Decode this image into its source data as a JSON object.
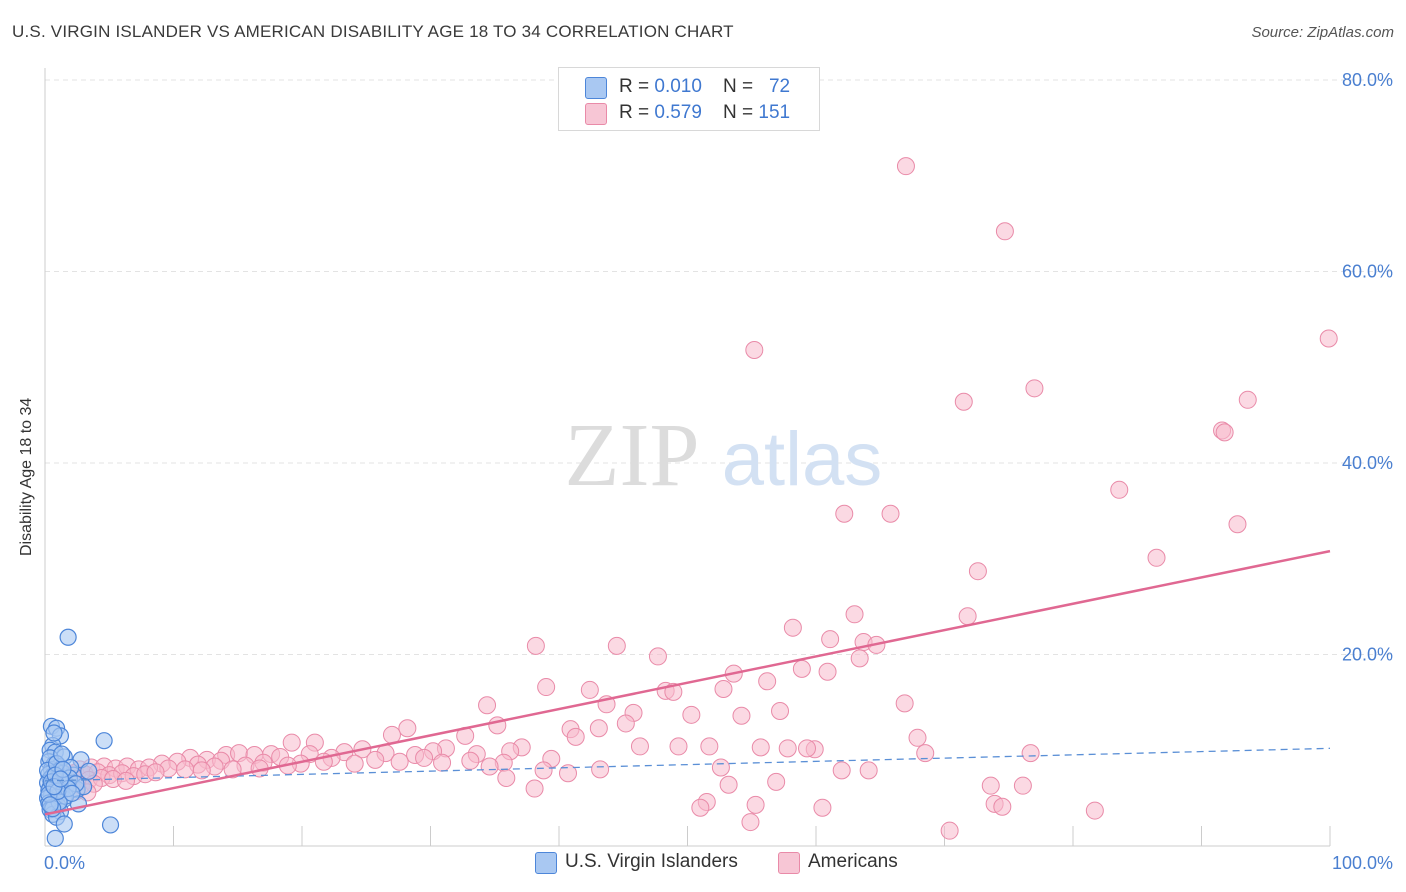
{
  "title": "U.S. VIRGIN ISLANDER VS AMERICAN DISABILITY AGE 18 TO 34 CORRELATION CHART",
  "source": "Source: ZipAtlas.com",
  "watermark": {
    "zip": "ZIP",
    "atlas": "atlas"
  },
  "legend": {
    "rows": [
      {
        "r_label": "R = ",
        "r_value": "0.010",
        "n_label": "N = ",
        "n_value": "72"
      },
      {
        "r_label": "R = ",
        "r_value": "0.579",
        "n_label": "N = ",
        "n_value": "151"
      }
    ]
  },
  "bottom_legend": [
    {
      "label": "U.S. Virgin Islanders"
    },
    {
      "label": "Americans"
    }
  ],
  "colors": {
    "blue_fill": "#a9c8f2",
    "blue_stroke": "#4d86d9",
    "blue_line": "#5a8fd6",
    "pink_fill": "#f7b9cc",
    "pink_stroke": "#e98aa8",
    "pink_line": "#e06892",
    "grid": "#e3e3e3",
    "axis": "#cccccc",
    "tick_text": "#4a7fd0"
  },
  "chart_data": {
    "type": "scatter",
    "title": "U.S. VIRGIN ISLANDER VS AMERICAN DISABILITY AGE 18 TO 34 CORRELATION CHART",
    "xlabel": "",
    "ylabel": "Disability Age 18 to 34",
    "xlim": [
      0,
      100
    ],
    "ylim": [
      0,
      80
    ],
    "x_tick_labels": [
      {
        "value": 0,
        "label": "0.0%"
      },
      {
        "value": 100,
        "label": "100.0%"
      }
    ],
    "y_tick_labels": [
      {
        "value": 20,
        "label": "20.0%"
      },
      {
        "value": 40,
        "label": "40.0%"
      },
      {
        "value": 60,
        "label": "60.0%"
      },
      {
        "value": 80,
        "label": "80.0%"
      }
    ],
    "series": [
      {
        "name": "U.S. Virgin Islanders",
        "R": 0.01,
        "N": 72,
        "trend": {
          "x": [
            0,
            100
          ],
          "y": [
            6.8,
            10.2
          ]
        },
        "points": [
          [
            1.8,
            21.8
          ],
          [
            0.5,
            12.5
          ],
          [
            0.9,
            12.3
          ],
          [
            1.2,
            11.5
          ],
          [
            0.6,
            10.5
          ],
          [
            4.6,
            11.0
          ],
          [
            0.4,
            10.0
          ],
          [
            0.8,
            9.8
          ],
          [
            1.5,
            9.3
          ],
          [
            2.8,
            9.0
          ],
          [
            0.3,
            8.8
          ],
          [
            0.7,
            8.5
          ],
          [
            1.1,
            8.3
          ],
          [
            0.5,
            8.0
          ],
          [
            0.9,
            7.8
          ],
          [
            1.4,
            7.6
          ],
          [
            0.3,
            7.5
          ],
          [
            0.6,
            7.3
          ],
          [
            2.2,
            7.4
          ],
          [
            1.0,
            7.2
          ],
          [
            0.4,
            7.0
          ],
          [
            0.8,
            6.9
          ],
          [
            1.3,
            6.8
          ],
          [
            0.2,
            6.6
          ],
          [
            0.6,
            6.5
          ],
          [
            1.7,
            6.4
          ],
          [
            1.0,
            6.3
          ],
          [
            0.4,
            6.1
          ],
          [
            0.8,
            6.0
          ],
          [
            2.5,
            5.9
          ],
          [
            0.3,
            5.8
          ],
          [
            0.6,
            5.6
          ],
          [
            1.2,
            5.5
          ],
          [
            0.5,
            5.3
          ],
          [
            0.9,
            5.1
          ],
          [
            0.2,
            5.0
          ],
          [
            1.5,
            4.9
          ],
          [
            0.7,
            4.7
          ],
          [
            0.3,
            4.5
          ],
          [
            2.6,
            4.4
          ],
          [
            1.0,
            4.2
          ],
          [
            0.5,
            4.0
          ],
          [
            0.4,
            3.8
          ],
          [
            1.2,
            3.6
          ],
          [
            0.6,
            3.3
          ],
          [
            0.9,
            3.0
          ],
          [
            1.5,
            2.3
          ],
          [
            5.1,
            2.2
          ],
          [
            0.8,
            0.8
          ],
          [
            3.4,
            7.8
          ],
          [
            3.0,
            6.2
          ],
          [
            2.0,
            8.2
          ],
          [
            1.6,
            5.2
          ],
          [
            0.4,
            9.2
          ],
          [
            0.7,
            11.8
          ],
          [
            1.9,
            7.1
          ],
          [
            0.2,
            7.9
          ],
          [
            1.1,
            4.6
          ],
          [
            0.5,
            6.7
          ],
          [
            2.4,
            6.5
          ],
          [
            0.9,
            8.6
          ],
          [
            1.3,
            9.6
          ],
          [
            0.6,
            3.9
          ],
          [
            0.3,
            5.4
          ],
          [
            1.8,
            6.0
          ],
          [
            0.8,
            7.4
          ],
          [
            1.0,
            5.7
          ],
          [
            0.4,
            4.3
          ],
          [
            2.1,
            5.5
          ],
          [
            1.4,
            8.0
          ],
          [
            0.7,
            6.2
          ],
          [
            1.2,
            7.0
          ]
        ]
      },
      {
        "name": "Americans",
        "R": 0.579,
        "N": 151,
        "trend": {
          "x": [
            0,
            100
          ],
          "y": [
            3.3,
            30.8
          ]
        },
        "points": [
          [
            67.0,
            71.0
          ],
          [
            74.7,
            64.2
          ],
          [
            55.2,
            51.8
          ],
          [
            99.9,
            53.0
          ],
          [
            77.0,
            47.8
          ],
          [
            71.5,
            46.4
          ],
          [
            93.6,
            46.6
          ],
          [
            91.6,
            43.4
          ],
          [
            91.8,
            43.2
          ],
          [
            83.6,
            37.2
          ],
          [
            62.2,
            34.7
          ],
          [
            65.8,
            34.7
          ],
          [
            92.8,
            33.6
          ],
          [
            86.5,
            30.1
          ],
          [
            72.6,
            28.7
          ],
          [
            63.0,
            24.2
          ],
          [
            71.8,
            24.0
          ],
          [
            58.2,
            22.8
          ],
          [
            61.1,
            21.6
          ],
          [
            63.7,
            21.3
          ],
          [
            64.7,
            21.0
          ],
          [
            38.2,
            20.9
          ],
          [
            44.5,
            20.9
          ],
          [
            47.7,
            19.8
          ],
          [
            63.4,
            19.6
          ],
          [
            58.9,
            18.5
          ],
          [
            60.9,
            18.2
          ],
          [
            53.6,
            18.0
          ],
          [
            56.2,
            17.2
          ],
          [
            39.0,
            16.6
          ],
          [
            42.4,
            16.3
          ],
          [
            48.3,
            16.2
          ],
          [
            48.9,
            16.1
          ],
          [
            52.8,
            16.4
          ],
          [
            34.4,
            14.7
          ],
          [
            43.7,
            14.8
          ],
          [
            45.8,
            13.9
          ],
          [
            66.9,
            14.9
          ],
          [
            57.2,
            14.1
          ],
          [
            50.3,
            13.7
          ],
          [
            54.2,
            13.6
          ],
          [
            35.2,
            12.6
          ],
          [
            45.2,
            12.8
          ],
          [
            28.2,
            12.3
          ],
          [
            40.9,
            12.2
          ],
          [
            43.1,
            12.3
          ],
          [
            27.0,
            11.6
          ],
          [
            32.7,
            11.5
          ],
          [
            41.3,
            11.4
          ],
          [
            19.2,
            10.8
          ],
          [
            21.0,
            10.8
          ],
          [
            37.1,
            10.3
          ],
          [
            31.2,
            10.2
          ],
          [
            46.3,
            10.4
          ],
          [
            49.3,
            10.4
          ],
          [
            51.7,
            10.4
          ],
          [
            55.7,
            10.3
          ],
          [
            57.8,
            10.2
          ],
          [
            59.9,
            10.1
          ],
          [
            76.7,
            9.7
          ],
          [
            67.9,
            11.3
          ],
          [
            17.6,
            9.6
          ],
          [
            20.6,
            9.6
          ],
          [
            23.3,
            9.8
          ],
          [
            26.5,
            9.7
          ],
          [
            28.8,
            9.5
          ],
          [
            30.2,
            9.9
          ],
          [
            24.7,
            10.1
          ],
          [
            14.1,
            9.5
          ],
          [
            15.1,
            9.7
          ],
          [
            16.3,
            9.5
          ],
          [
            18.3,
            9.3
          ],
          [
            22.3,
            9.2
          ],
          [
            25.7,
            9.0
          ],
          [
            29.5,
            9.2
          ],
          [
            33.6,
            9.6
          ],
          [
            36.2,
            9.9
          ],
          [
            39.4,
            9.1
          ],
          [
            11.3,
            9.2
          ],
          [
            12.6,
            9.0
          ],
          [
            13.7,
            8.9
          ],
          [
            17.0,
            8.7
          ],
          [
            19.9,
            8.6
          ],
          [
            21.7,
            8.8
          ],
          [
            24.1,
            8.6
          ],
          [
            27.6,
            8.8
          ],
          [
            30.9,
            8.7
          ],
          [
            33.1,
            8.9
          ],
          [
            35.7,
            8.7
          ],
          [
            9.1,
            8.6
          ],
          [
            10.3,
            8.8
          ],
          [
            11.9,
            8.5
          ],
          [
            13.2,
            8.3
          ],
          [
            15.6,
            8.4
          ],
          [
            18.9,
            8.4
          ],
          [
            2.7,
            8.0
          ],
          [
            3.6,
            8.2
          ],
          [
            4.6,
            8.3
          ],
          [
            5.5,
            8.1
          ],
          [
            6.4,
            8.3
          ],
          [
            7.3,
            8.0
          ],
          [
            8.1,
            8.2
          ],
          [
            9.6,
            8.1
          ],
          [
            10.9,
            8.0
          ],
          [
            12.2,
            7.9
          ],
          [
            14.6,
            8.0
          ],
          [
            16.7,
            8.1
          ],
          [
            2.2,
            7.6
          ],
          [
            3.1,
            7.5
          ],
          [
            4.1,
            7.7
          ],
          [
            5.0,
            7.4
          ],
          [
            6.0,
            7.6
          ],
          [
            6.9,
            7.3
          ],
          [
            7.8,
            7.5
          ],
          [
            8.6,
            7.7
          ],
          [
            1.4,
            7.2
          ],
          [
            2.3,
            7.0
          ],
          [
            3.4,
            6.9
          ],
          [
            4.4,
            7.1
          ],
          [
            5.3,
            7.0
          ],
          [
            6.3,
            6.8
          ],
          [
            1.7,
            6.4
          ],
          [
            2.8,
            6.3
          ],
          [
            3.8,
            6.5
          ],
          [
            1.2,
            5.9
          ],
          [
            2.4,
            5.7
          ],
          [
            3.3,
            5.6
          ],
          [
            1.9,
            6.8
          ],
          [
            34.6,
            8.3
          ],
          [
            38.8,
            7.9
          ],
          [
            43.2,
            8.0
          ],
          [
            35.9,
            7.1
          ],
          [
            40.7,
            7.6
          ],
          [
            52.6,
            8.2
          ],
          [
            62.0,
            7.9
          ],
          [
            64.1,
            7.9
          ],
          [
            59.3,
            10.2
          ],
          [
            68.5,
            9.7
          ],
          [
            53.2,
            6.4
          ],
          [
            56.9,
            6.7
          ],
          [
            73.6,
            6.3
          ],
          [
            76.1,
            6.3
          ],
          [
            38.1,
            6.0
          ],
          [
            51.5,
            4.6
          ],
          [
            55.3,
            4.3
          ],
          [
            60.5,
            4.0
          ],
          [
            73.9,
            4.4
          ],
          [
            74.5,
            4.1
          ],
          [
            81.7,
            3.7
          ],
          [
            51.0,
            4.0
          ],
          [
            54.9,
            2.5
          ],
          [
            70.4,
            1.6
          ]
        ]
      }
    ]
  }
}
